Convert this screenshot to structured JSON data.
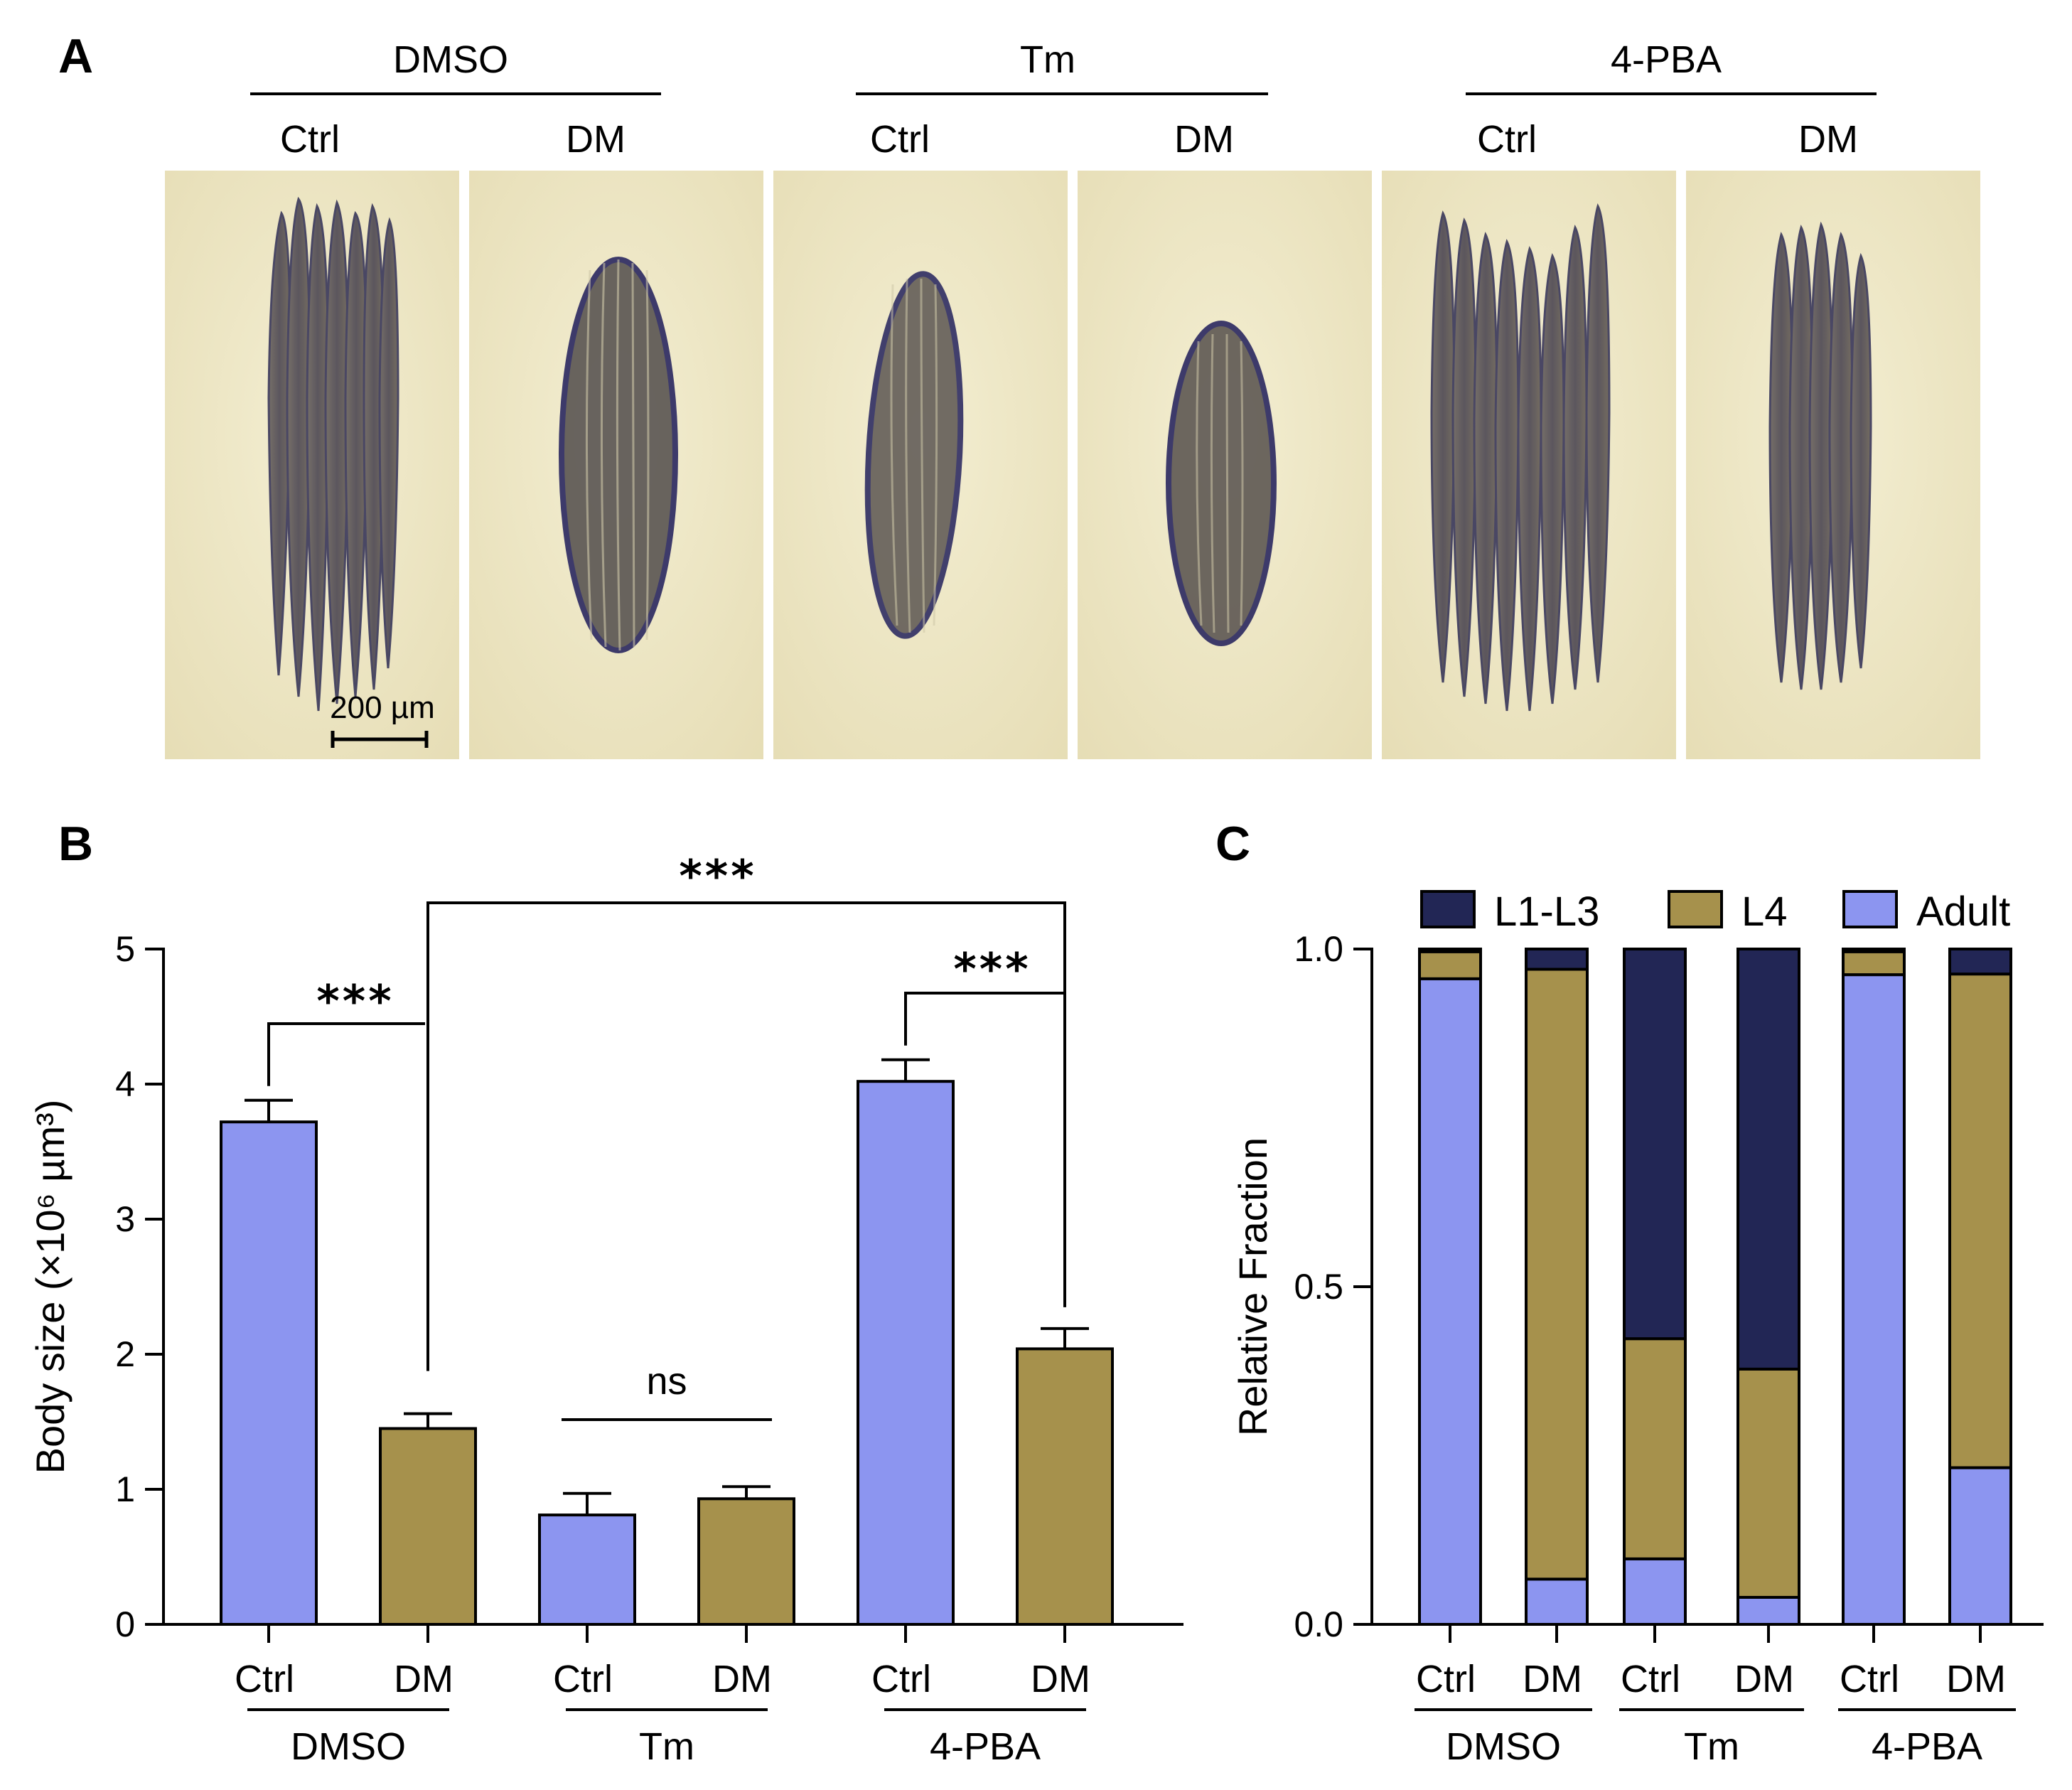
{
  "panel_a": {
    "letter": "A",
    "groups": [
      "DMSO",
      "Tm",
      "4-PBA"
    ],
    "conditions": [
      "Ctrl",
      "DM",
      "Ctrl",
      "DM",
      "Ctrl",
      "DM"
    ],
    "scale_bar": "200 µm"
  },
  "colors": {
    "adult": "#8c95f0",
    "l4": "#a6914c",
    "l1l3": "#222655",
    "micro_bg": "#efe8c6"
  },
  "chart_data": [
    {
      "id": "B",
      "type": "bar",
      "letter": "B",
      "ylabel": "Body size (×10⁶ µm³)",
      "ylim": [
        0,
        5
      ],
      "yticks": [
        "0",
        "1",
        "2",
        "3",
        "4",
        "5"
      ],
      "categories": [
        "Ctrl",
        "DM",
        "Ctrl",
        "DM",
        "Ctrl",
        "DM"
      ],
      "groups": [
        "DMSO",
        "Tm",
        "4-PBA"
      ],
      "values": [
        3.72,
        1.45,
        0.81,
        0.93,
        4.02,
        2.04
      ],
      "errors": [
        0.16,
        0.11,
        0.16,
        0.09,
        0.16,
        0.15
      ],
      "annotations": [
        {
          "text": "***",
          "between": [
            0,
            1
          ]
        },
        {
          "text": "***",
          "between": [
            1,
            5
          ]
        },
        {
          "text": "***",
          "between": [
            4,
            5
          ]
        },
        {
          "text": "ns",
          "between": [
            2,
            3
          ]
        }
      ]
    },
    {
      "id": "C",
      "type": "bar",
      "stacked": true,
      "letter": "C",
      "ylabel": "Relative Fraction",
      "ylim": [
        0,
        1
      ],
      "yticks": [
        "0.0",
        "0.5",
        "1.0"
      ],
      "categories": [
        "Ctrl",
        "DM",
        "Ctrl",
        "DM",
        "Ctrl",
        "DM"
      ],
      "groups": [
        "DMSO",
        "Tm",
        "4-PBA"
      ],
      "legend_position": "top",
      "series": [
        {
          "name": "Adult",
          "values": [
            0.956,
            0.067,
            0.097,
            0.04,
            0.962,
            0.232
          ]
        },
        {
          "name": "L4",
          "values": [
            0.04,
            0.903,
            0.326,
            0.338,
            0.034,
            0.731
          ]
        },
        {
          "name": "L1-L3",
          "values": [
            0.004,
            0.03,
            0.577,
            0.622,
            0.004,
            0.037
          ]
        }
      ]
    }
  ]
}
